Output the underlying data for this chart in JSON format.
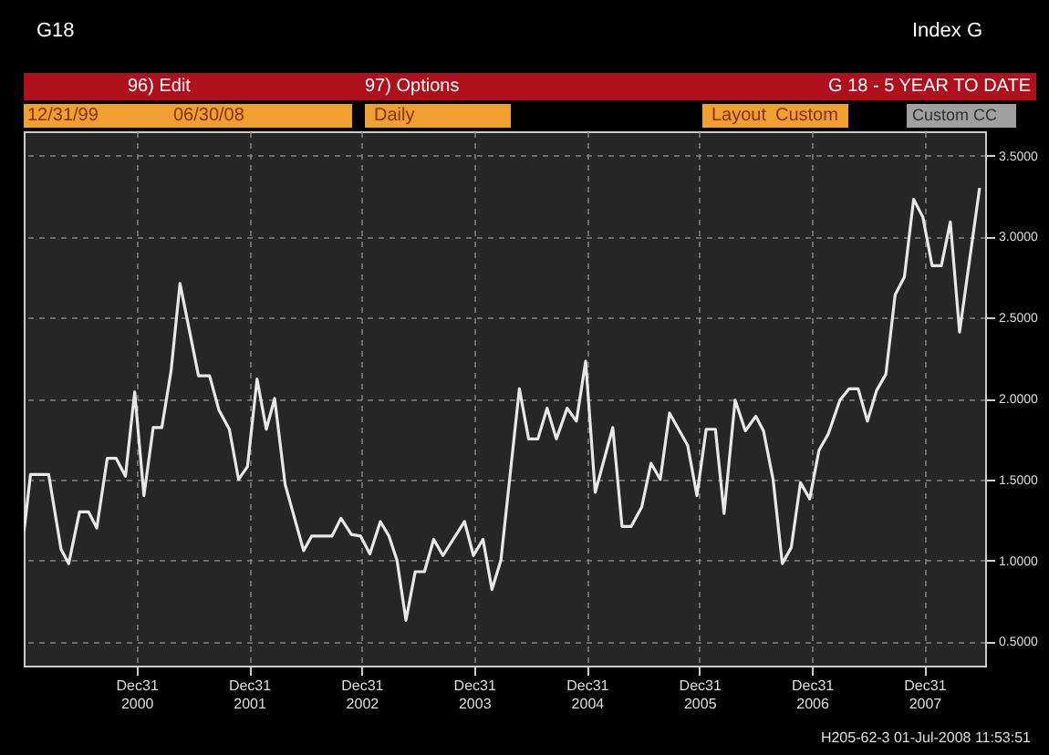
{
  "chart_data": {
    "type": "line",
    "title": "G 18 - 5 YEAR TO DATE",
    "annotations": [
      "G18",
      "Index G",
      "96) Edit",
      "97) Options",
      "12/31/99",
      "06/30/08",
      "Daily",
      "Layout",
      "Custom",
      "Custom CC",
      "H205-62-3 01-Jul-2008 11:53:51"
    ],
    "series": [
      {
        "color": "#e8e8e8",
        "x": [
          "2000-01-01",
          "2000-01-22",
          "2000-03-21",
          "2000-04-30",
          "2000-05-25",
          "2000-06-29",
          "2000-07-28",
          "2000-08-24",
          "2000-09-27",
          "2000-10-26",
          "2000-11-25",
          "2000-12-25",
          "2001-01-24",
          "2001-02-23",
          "2001-03-23",
          "2001-04-22",
          "2001-05-21",
          "2001-07-20",
          "2001-08-25",
          "2001-09-24",
          "2001-10-28",
          "2001-11-27",
          "2001-12-26",
          "2002-01-26",
          "2002-02-25",
          "2002-03-24",
          "2002-04-27",
          "2002-06-26",
          "2002-07-22",
          "2002-09-26",
          "2002-10-25",
          "2002-11-28",
          "2002-12-28",
          "2003-01-27",
          "2003-03-02",
          "2003-03-30",
          "2003-04-25",
          "2003-05-24",
          "2003-06-23",
          "2003-07-23",
          "2003-08-22",
          "2003-09-21",
          "2003-11-30",
          "2003-12-29",
          "2004-01-29",
          "2004-02-27",
          "2004-03-27",
          "2004-05-26",
          "2004-06-25",
          "2004-07-25",
          "2004-08-24",
          "2004-09-23",
          "2004-10-28",
          "2004-11-27",
          "2004-12-27",
          "2005-01-27",
          "2005-03-25",
          "2005-04-24",
          "2005-05-24",
          "2005-06-27",
          "2005-07-27",
          "2005-08-26",
          "2005-09-25",
          "2005-11-23",
          "2005-12-23",
          "2006-01-22",
          "2006-02-21",
          "2006-03-21",
          "2006-04-26",
          "2006-05-29",
          "2006-07-02",
          "2006-07-27",
          "2006-08-27",
          "2006-09-26",
          "2006-10-25",
          "2006-11-24",
          "2006-12-24",
          "2007-01-23",
          "2007-02-22",
          "2007-04-01",
          "2007-05-01",
          "2007-05-30",
          "2007-06-29",
          "2007-07-29",
          "2007-08-28",
          "2007-09-27",
          "2007-10-27",
          "2007-11-26",
          "2007-12-26",
          "2008-01-25",
          "2008-02-24",
          "2008-03-24",
          "2008-04-23",
          "2008-06-27"
        ],
        "values": [
          1.18,
          1.53,
          1.53,
          1.07,
          0.98,
          1.3,
          1.3,
          1.2,
          1.63,
          1.63,
          1.52,
          2.04,
          1.4,
          1.82,
          1.82,
          2.17,
          2.71,
          2.14,
          2.14,
          1.93,
          1.81,
          1.5,
          1.58,
          2.12,
          1.81,
          2.0,
          1.47,
          1.06,
          1.15,
          1.15,
          1.26,
          1.16,
          1.15,
          1.04,
          1.24,
          1.15,
          1.0,
          0.63,
          0.93,
          0.93,
          1.13,
          1.03,
          1.24,
          1.03,
          1.13,
          0.82,
          1.0,
          2.06,
          1.75,
          1.75,
          1.94,
          1.75,
          1.94,
          1.86,
          2.23,
          1.42,
          1.82,
          1.21,
          1.21,
          1.33,
          1.6,
          1.5,
          1.91,
          1.71,
          1.4,
          1.81,
          1.81,
          1.29,
          1.99,
          1.8,
          1.89,
          1.8,
          1.5,
          0.98,
          1.08,
          1.48,
          1.38,
          1.68,
          1.78,
          1.99,
          2.06,
          2.06,
          1.86,
          2.05,
          2.15,
          2.64,
          2.75,
          3.23,
          3.12,
          2.82,
          2.82,
          3.09,
          2.41,
          3.3
        ]
      }
    ],
    "xlim": [
      "1999-12-31",
      "2008-07-15"
    ],
    "xticks": [
      {
        "value": "2000-12-31",
        "label": "Dec31 2000"
      },
      {
        "value": "2001-12-31",
        "label": "Dec31 2001"
      },
      {
        "value": "2002-12-31",
        "label": "Dec31 2002"
      },
      {
        "value": "2003-12-31",
        "label": "Dec31 2003"
      },
      {
        "value": "2004-12-31",
        "label": "Dec31 2004"
      },
      {
        "value": "2005-12-31",
        "label": "Dec31 2005"
      },
      {
        "value": "2006-12-31",
        "label": "Dec31 2006"
      },
      {
        "value": "2007-12-31",
        "label": "Dec31 2007"
      }
    ],
    "ylim": [
      0.35,
      3.65
    ],
    "yticks": [
      {
        "value": 0.5,
        "label": "0.5000"
      },
      {
        "value": 1.0,
        "label": "1.0000"
      },
      {
        "value": 1.5,
        "label": "1.5000"
      },
      {
        "value": 2.0,
        "label": "2.0000"
      },
      {
        "value": 2.5,
        "label": "2.5000"
      },
      {
        "value": 3.0,
        "label": "3.0000"
      },
      {
        "value": 3.5,
        "label": "3.5000"
      }
    ],
    "grid": true,
    "legend": false,
    "marker": "none",
    "line_style": "solid"
  }
}
